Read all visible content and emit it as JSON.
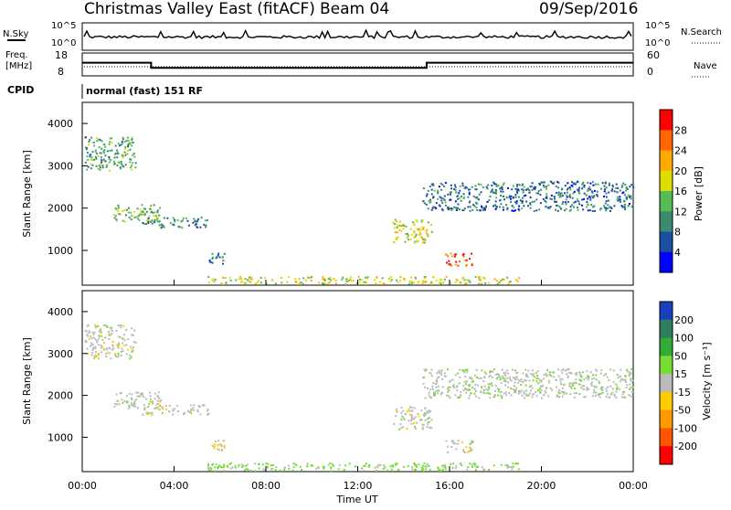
{
  "header": {
    "title": "Christmas Valley East (fitACF)",
    "beam": "Beam 04",
    "date": "09/Sep/2016"
  },
  "status_panels": {
    "nsky_label": "N.Sky",
    "nsky_ticks": [
      "10^5",
      "10^0"
    ],
    "nsearch_label": "N.Search",
    "nsearch_ticks": [
      "10^5",
      "10^0"
    ],
    "freq_label_line1": "Freq.",
    "freq_label_line2": "[MHz]",
    "freq_ticks": [
      "18",
      "8"
    ],
    "nave_label": "Nave",
    "nave_ticks": [
      "60",
      "0"
    ],
    "cpid_label": "CPID",
    "cpid_text": "normal (fast) 151 RF"
  },
  "axes": {
    "ylabel": "Slant Range [km]",
    "xlabel": "Time UT",
    "x_ticks": [
      "00:00",
      "04:00",
      "08:00",
      "12:00",
      "16:00",
      "20:00",
      "00:00"
    ],
    "y_ticks": [
      "4000",
      "3000",
      "2000",
      "1000"
    ]
  },
  "power_colorbar": {
    "label": "Power [dB]",
    "ticks": [
      "28",
      "24",
      "20",
      "16",
      "12",
      "8",
      "4"
    ],
    "colors": [
      "#ff0000",
      "#ff6600",
      "#ffaa00",
      "#dddd00",
      "#55bb55",
      "#3d8a6e",
      "#1a4fa0",
      "#0000ff"
    ]
  },
  "velocity_colorbar": {
    "label": "Velocity [m s⁻¹]",
    "ticks": [
      "200",
      "100",
      "50",
      "15",
      "-15",
      "-50",
      "-100",
      "-200"
    ],
    "colors": [
      "#1a3fbf",
      "#2e7d5e",
      "#33aa33",
      "#77dd33",
      "#bbbbbb",
      "#ffcc00",
      "#ff9900",
      "#ff5500",
      "#ff0000"
    ]
  },
  "chart_data": {
    "type": "heatmap",
    "time_range_hours": [
      0,
      24
    ],
    "y_range_km": [
      180,
      4500
    ],
    "frequency_mhz": [
      {
        "start_h": 0,
        "end_h": 3,
        "value": 14
      },
      {
        "start_h": 3,
        "end_h": 15,
        "value": 11
      },
      {
        "start_h": 15,
        "end_h": 24,
        "value": 14
      }
    ],
    "echo_regions": [
      {
        "t0": 0.1,
        "t1": 2.3,
        "r0": 2900,
        "r1": 3700,
        "power": 14,
        "velocity": 0
      },
      {
        "t0": 1.3,
        "t1": 3.4,
        "r0": 1700,
        "r1": 2100,
        "power": 16,
        "velocity": 0
      },
      {
        "t0": 2.6,
        "t1": 5.5,
        "r0": 1550,
        "r1": 1800,
        "power": 12,
        "velocity": 0
      },
      {
        "t0": 5.5,
        "t1": 6.2,
        "r0": 700,
        "r1": 950,
        "power": 12,
        "velocity": -10
      },
      {
        "t0": 5.4,
        "t1": 19.0,
        "r0": 220,
        "r1": 400,
        "power": 20,
        "velocity": 25
      },
      {
        "t0": 13.5,
        "t1": 15.2,
        "r0": 1200,
        "r1": 1750,
        "power": 20,
        "velocity": 0
      },
      {
        "t0": 15.8,
        "t1": 17.0,
        "r0": 650,
        "r1": 950,
        "power": 28,
        "velocity": 0
      },
      {
        "t0": 14.8,
        "t1": 24.0,
        "r0": 1950,
        "r1": 2650,
        "power": 10,
        "velocity": 5
      }
    ]
  }
}
